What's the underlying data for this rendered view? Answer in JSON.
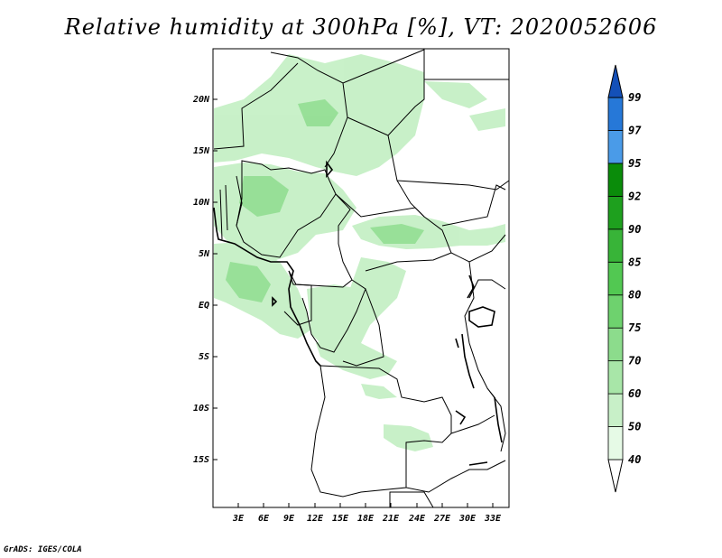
{
  "title": "Relative humidity at 300hPa [%], VT: 2020052606",
  "credit": "GrADS: IGES/COLA",
  "map": {
    "lat_labels": [
      "20N",
      "15N",
      "10N",
      "5N",
      "EQ",
      "5S",
      "10S",
      "15S"
    ],
    "lon_labels": [
      "3E",
      "6E",
      "9E",
      "12E",
      "15E",
      "18E",
      "21E",
      "24E",
      "27E",
      "30E",
      "33E"
    ]
  },
  "colorbar": {
    "levels": [
      "40",
      "50",
      "60",
      "70",
      "75",
      "80",
      "85",
      "90",
      "92",
      "95",
      "97",
      "99"
    ],
    "colors": [
      "#ffffff",
      "#e6fae6",
      "#c8f0c8",
      "#a8e6a8",
      "#8cdc8c",
      "#6ed26e",
      "#52c852",
      "#38b438",
      "#1ea01e",
      "#0a8c0a",
      "#4a9be8",
      "#2678d8",
      "#1450b8"
    ]
  }
}
